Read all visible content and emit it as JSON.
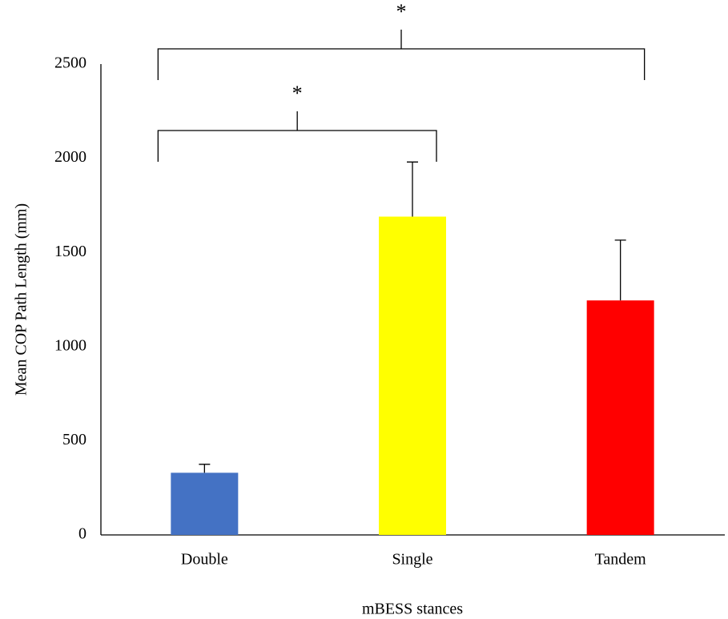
{
  "chart_data": {
    "type": "bar",
    "x_label": "mBESS stances",
    "y_label": "Mean COP Path Length (mm)",
    "categories": [
      "Double",
      "Single",
      "Tandem"
    ],
    "values": [
      330,
      1690,
      1245
    ],
    "errors": [
      45,
      290,
      320
    ],
    "colors": [
      "#4472c4",
      "#ffff00",
      "#ff0000"
    ],
    "ylim": [
      0,
      2500
    ],
    "yticks": [
      0,
      500,
      1000,
      1500,
      2000,
      2500
    ],
    "grid": false,
    "significance": [
      {
        "from": 0,
        "to": 1,
        "label": "*"
      },
      {
        "from": 0,
        "to": 2,
        "label": "*"
      }
    ]
  }
}
